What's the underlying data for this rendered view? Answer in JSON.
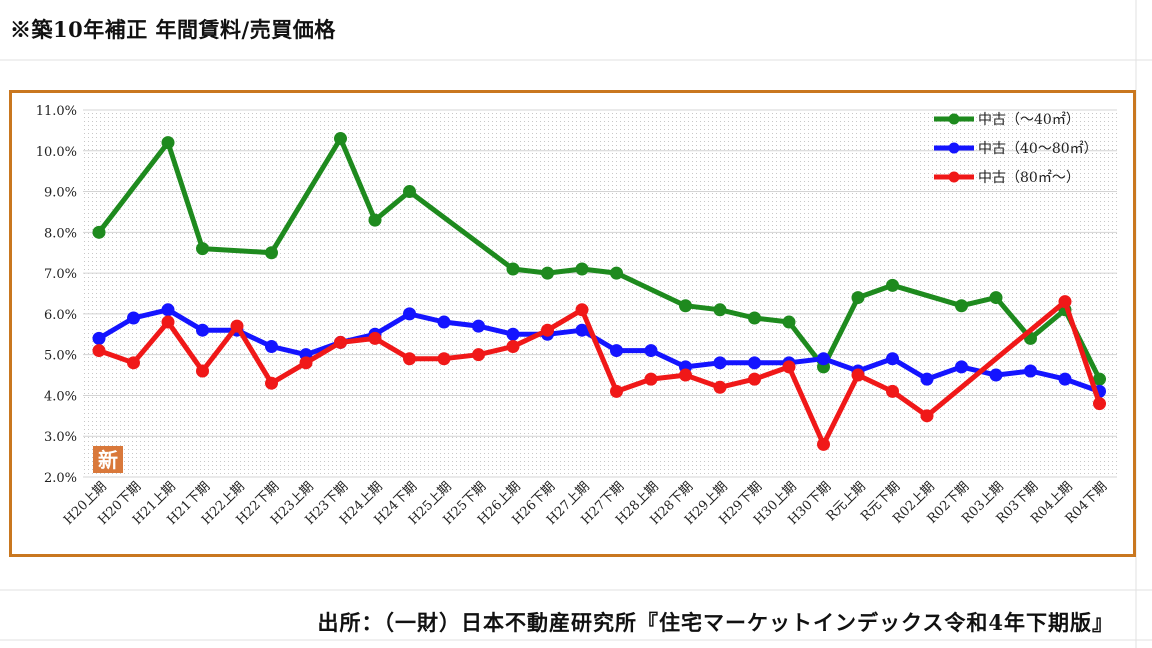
{
  "header": {
    "title": "※築10年補正 年間賃料/売買価格"
  },
  "footer": {
    "source": "出所：（一財）日本不動産研究所『住宅マーケットインデックス令和4年下期版』"
  },
  "badge": {
    "label": "新",
    "color": "#d9783a"
  },
  "colors": {
    "frame": "#c9771f"
  },
  "chart_data": {
    "type": "line",
    "ylim": [
      2.0,
      11.0
    ],
    "yticks": [
      "2.0%",
      "3.0%",
      "4.0%",
      "5.0%",
      "6.0%",
      "7.0%",
      "8.0%",
      "9.0%",
      "10.0%",
      "11.0%"
    ],
    "ytick_values": [
      2,
      3,
      4,
      5,
      6,
      7,
      8,
      9,
      10,
      11
    ],
    "grid": true,
    "legend_position": "top-right",
    "categories": [
      "H20上期",
      "H20下期",
      "H21上期",
      "H21下期",
      "H22上期",
      "H22下期",
      "H23上期",
      "H23下期",
      "H24上期",
      "H24下期",
      "H25上期",
      "H25下期",
      "H26上期",
      "H26下期",
      "H27上期",
      "H27下期",
      "H28上期",
      "H28下期",
      "H29上期",
      "H29下期",
      "H30上期",
      "H30下期",
      "R元上期",
      "R元下期",
      "R02上期",
      "R02下期",
      "R03上期",
      "R03下期",
      "R04上期",
      "R04下期"
    ],
    "series": [
      {
        "name": "中古（～40㎡）",
        "color": "#1e8a1e",
        "values": [
          8.0,
          null,
          10.2,
          7.6,
          null,
          7.5,
          null,
          10.3,
          8.3,
          9.0,
          null,
          null,
          7.1,
          7.0,
          7.1,
          7.0,
          null,
          6.2,
          6.1,
          5.9,
          5.8,
          4.7,
          6.4,
          6.7,
          null,
          6.2,
          6.4,
          5.4,
          6.1,
          4.4
        ]
      },
      {
        "name": "中古（40～80㎡）",
        "color": "#1414ff",
        "values": [
          5.4,
          5.9,
          6.1,
          5.6,
          5.6,
          5.2,
          5.0,
          5.3,
          5.5,
          6.0,
          5.8,
          5.7,
          5.5,
          5.5,
          5.6,
          5.1,
          5.1,
          4.7,
          4.8,
          4.8,
          4.8,
          4.9,
          4.6,
          4.9,
          4.4,
          4.7,
          4.5,
          4.6,
          4.4,
          4.1
        ]
      },
      {
        "name": "中古（80㎡～）",
        "color": "#f01818",
        "values": [
          5.1,
          4.8,
          5.8,
          4.6,
          5.7,
          4.3,
          4.8,
          5.3,
          5.4,
          4.9,
          4.9,
          5.0,
          5.2,
          5.6,
          6.1,
          4.1,
          4.4,
          4.5,
          4.2,
          4.4,
          4.7,
          2.8,
          4.5,
          4.1,
          3.5,
          null,
          null,
          null,
          6.3,
          3.8
        ]
      }
    ]
  }
}
